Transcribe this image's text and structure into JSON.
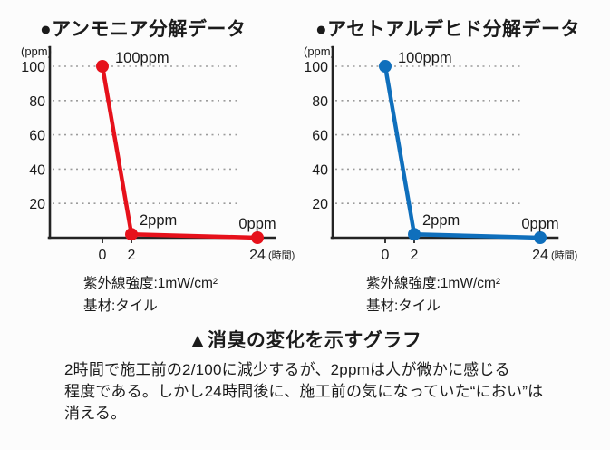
{
  "chart_data": [
    {
      "type": "line",
      "title": "●アンモニア分解データ",
      "x": [
        0,
        2,
        24
      ],
      "values": [
        100,
        2,
        0
      ],
      "point_labels": [
        "100ppm",
        "2ppm",
        "0ppm"
      ],
      "x_tick_labels": [
        "0",
        "2",
        "24"
      ],
      "x_axis_unit": "(時間)",
      "y_axis_unit": "(ppm)",
      "y_ticks": [
        100,
        80,
        60,
        40,
        20
      ],
      "ylim": [
        0,
        110
      ],
      "grid": "dotted-horizontal",
      "legend": "none",
      "color": "#e6111b",
      "notes": [
        "紫外線強度:1mW/cm²",
        "基材:タイル"
      ]
    },
    {
      "type": "line",
      "title": "●アセトアルデヒド分解データ",
      "x": [
        0,
        2,
        24
      ],
      "values": [
        100,
        2,
        0
      ],
      "point_labels": [
        "100ppm",
        "2ppm",
        "0ppm"
      ],
      "x_tick_labels": [
        "0",
        "2",
        "24"
      ],
      "x_axis_unit": "(時間)",
      "y_axis_unit": "(ppm)",
      "y_ticks": [
        100,
        80,
        60,
        40,
        20
      ],
      "ylim": [
        0,
        110
      ],
      "grid": "dotted-horizontal",
      "legend": "none",
      "color": "#0f6fbc",
      "notes": [
        "紫外線強度:1mW/cm²",
        "基材:タイル"
      ]
    }
  ],
  "caption": "▲消臭の変化を示すグラフ",
  "body_text": "2時間で施工前の2/100に減少するが、2ppmは人が微かに感じる\n程度である。しかし24時間後に、施工前の気になっていた“におい”は\n消える。"
}
